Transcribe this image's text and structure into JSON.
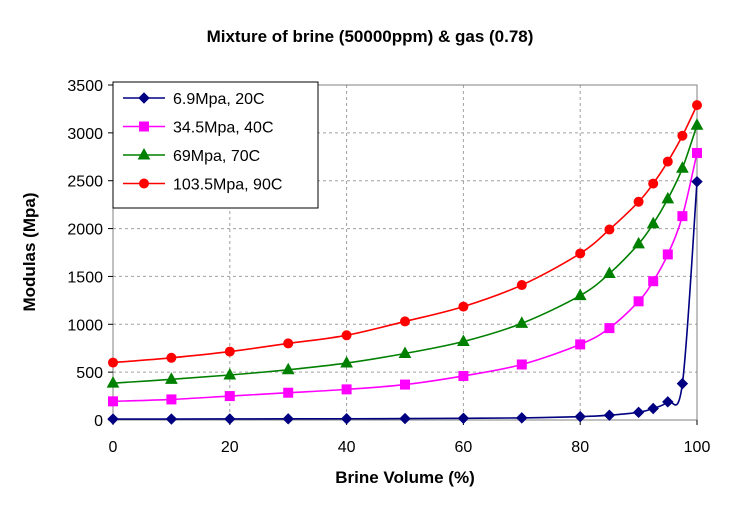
{
  "chart_data": {
    "type": "line",
    "title": "Mixture of brine (50000ppm) & gas (0.78)",
    "xlabel": "Brine Volume (%)",
    "ylabel": "Modulas (Mpa)",
    "xlim": [
      0,
      100
    ],
    "ylim": [
      0,
      3500
    ],
    "xticks": [
      0,
      20,
      40,
      60,
      80,
      100
    ],
    "yticks": [
      0,
      500,
      1000,
      1500,
      2000,
      2500,
      3000,
      3500
    ],
    "grid": true,
    "legend_position": "top-left",
    "x": [
      0,
      10,
      20,
      30,
      40,
      50,
      60,
      70,
      80,
      85,
      90,
      92.5,
      95,
      97.5,
      100
    ],
    "series": [
      {
        "name": "6.9Mpa, 20C",
        "color": "#000080",
        "marker": "diamond",
        "values": [
          10,
          10,
          11,
          12,
          13,
          15,
          18,
          22,
          35,
          50,
          80,
          120,
          190,
          380,
          2490
        ]
      },
      {
        "name": "34.5Mpa, 40C",
        "color": "#ff00ff",
        "marker": "square",
        "values": [
          195,
          215,
          250,
          285,
          320,
          370,
          460,
          580,
          790,
          960,
          1240,
          1450,
          1730,
          2130,
          2790
        ]
      },
      {
        "name": "69Mpa, 70C",
        "color": "#008000",
        "marker": "triangle",
        "values": [
          385,
          425,
          470,
          525,
          595,
          695,
          820,
          1010,
          1300,
          1530,
          1840,
          2050,
          2310,
          2630,
          3080
        ]
      },
      {
        "name": "103.5Mpa, 90C",
        "color": "#ff0000",
        "marker": "circle",
        "values": [
          600,
          650,
          715,
          800,
          885,
          1030,
          1185,
          1410,
          1740,
          1990,
          2280,
          2470,
          2700,
          2970,
          3290
        ]
      }
    ]
  }
}
